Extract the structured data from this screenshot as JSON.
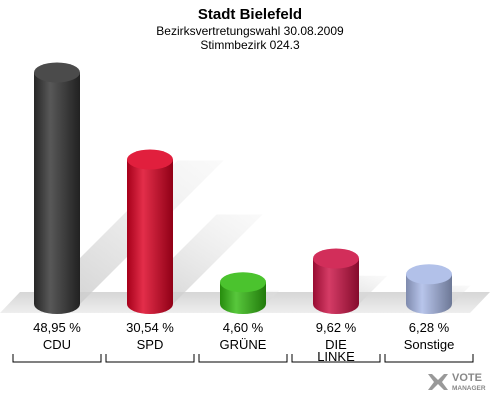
{
  "chart_data": {
    "type": "bar",
    "title": "Stadt Bielefeld",
    "subtitle": "Bezirksvertretungswahl 30.08.2009",
    "subtitle2": "Stimmbezirk 024.3",
    "categories": [
      "CDU",
      "SPD",
      "GRÜNE",
      "DIE LINKE",
      "Sonstige"
    ],
    "values": [
      48.95,
      30.54,
      4.6,
      9.62,
      6.28
    ],
    "value_labels": [
      "48,95 %",
      "30,54 %",
      "4,60 %",
      "9,62 %",
      "6,28 %"
    ],
    "colors": [
      "#333333",
      "#dd0022",
      "#33bb11",
      "#cc1144",
      "#a8b8e6"
    ],
    "ylim": [
      0,
      50
    ],
    "grid": false,
    "legend": "none"
  },
  "logo": {
    "text": "VOTE",
    "subtext": "MANAGER"
  }
}
